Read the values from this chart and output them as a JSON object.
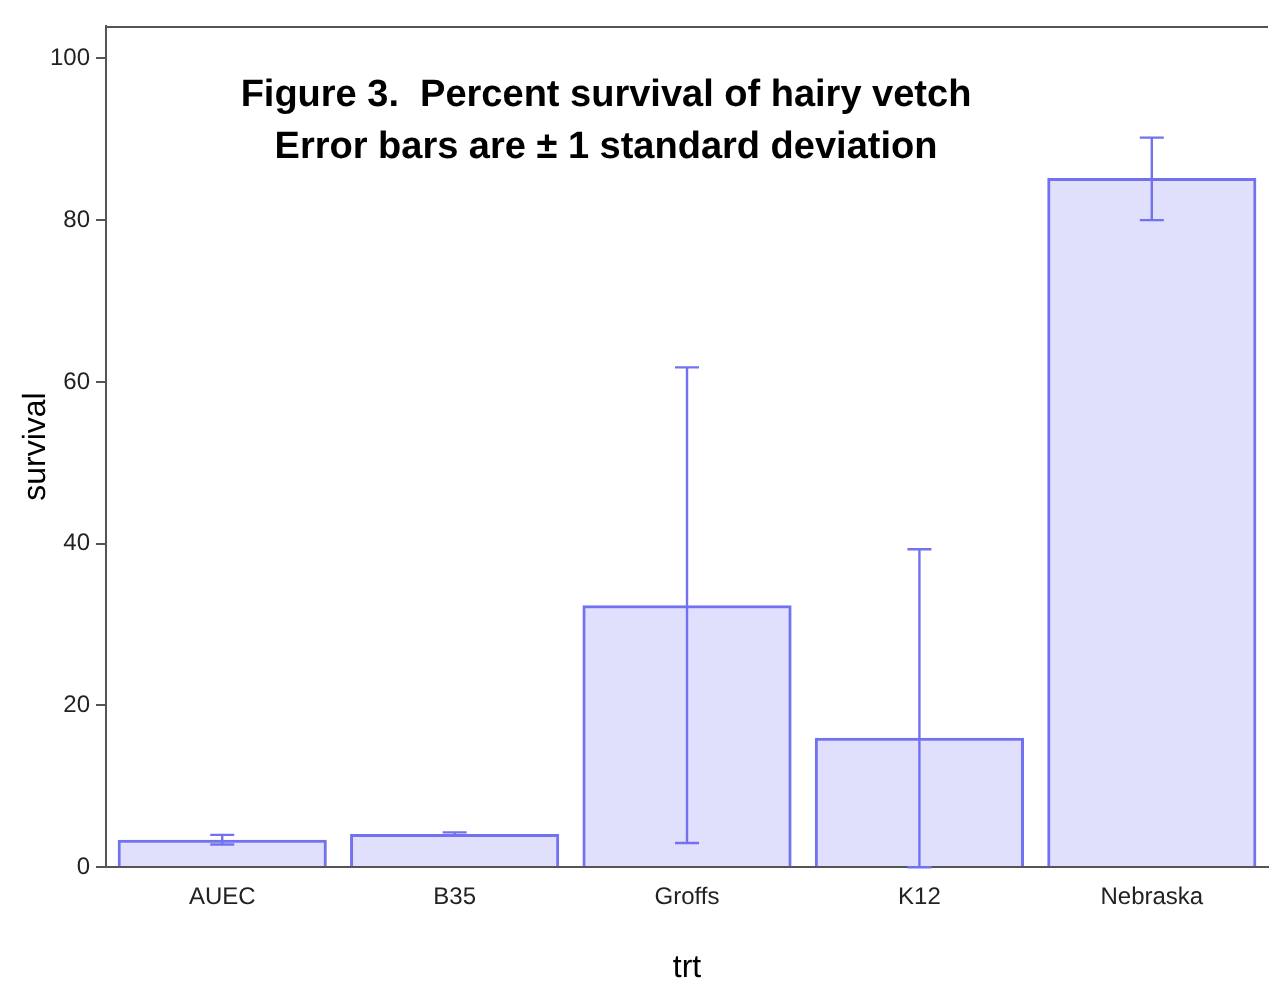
{
  "chart_data": {
    "type": "bar",
    "title": "Figure 3.  Percent survival of hairy vetch",
    "subtitle": "Error bars are ± 1 standard deviation",
    "xlabel": "trt",
    "ylabel": "survival",
    "categories": [
      "AUEC",
      "B35",
      "Groffs",
      "K12",
      "Nebraska"
    ],
    "values": [
      3.4,
      4.1,
      32.4,
      16.0,
      85.2
    ],
    "errors": [
      [
        2.8,
        4.0
      ],
      [
        3.9,
        4.3
      ],
      [
        3.0,
        61.8
      ],
      [
        0,
        39.3
      ],
      [
        80.0,
        90.2
      ]
    ],
    "color": "#7272f0",
    "ylim": [
      0,
      104
    ],
    "yticks": [
      0,
      20,
      40,
      60,
      80,
      100
    ],
    "grid": false,
    "legend": false
  }
}
